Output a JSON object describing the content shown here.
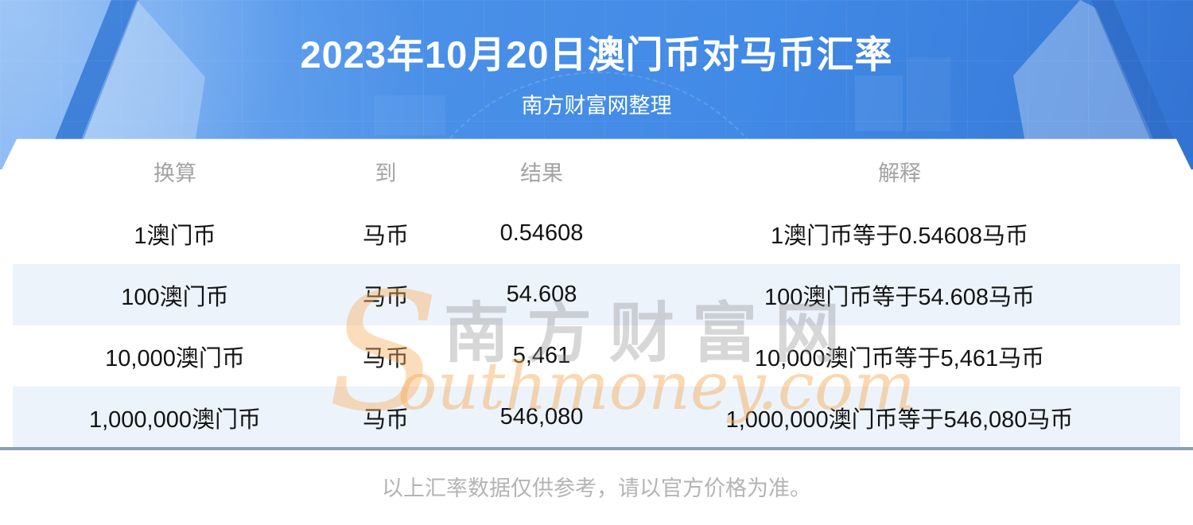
{
  "banner": {
    "title": "2023年10月20日澳门币对马币汇率",
    "subtitle": "南方财富网整理"
  },
  "table": {
    "columns": [
      "换算",
      "到",
      "结果",
      "解释"
    ],
    "rows": [
      {
        "convert": "1澳门币",
        "to": "马币",
        "result": "0.54608",
        "explain": "1澳门币等于0.54608马币"
      },
      {
        "convert": "100澳门币",
        "to": "马币",
        "result": "54.608",
        "explain": "100澳门币等于54.608马币"
      },
      {
        "convert": "10,000澳门币",
        "to": "马币",
        "result": "5,461",
        "explain": "10,000澳门币等于5,461马币"
      },
      {
        "convert": "1,000,000澳门币",
        "to": "马币",
        "result": "546,080",
        "explain": "1,000,000澳门币等于546,080马币"
      }
    ]
  },
  "watermark": {
    "initial": "S",
    "cn": "南方财富网",
    "en": "outhmoney.com"
  },
  "footer": {
    "note": "以上汇率数据仅供参考，请以官方价格为准。"
  },
  "colors": {
    "banner_blue": "#4a90e8",
    "row_band_blue": "#ecf3fb",
    "divider_slate": "#8b9fb7",
    "watermark_orange": "#f7ad5c",
    "header_grey": "#a3a3a3",
    "footer_grey": "#b4b4b4"
  }
}
